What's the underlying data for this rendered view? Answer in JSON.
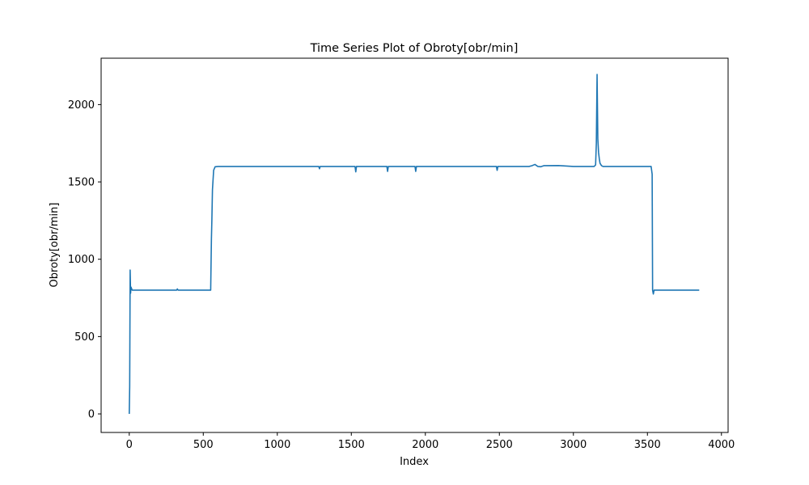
{
  "chart_data": {
    "type": "line",
    "title": "Time Series Plot of Obroty[obr/min]",
    "xlabel": "Index",
    "ylabel": "Obroty[obr/min]",
    "xlim": [
      -190,
      4045
    ],
    "ylim": [
      -120,
      2300
    ],
    "x_ticks": [
      0,
      500,
      1000,
      1500,
      2000,
      2500,
      3000,
      3500,
      4000
    ],
    "y_ticks": [
      0,
      500,
      1000,
      1500,
      2000
    ],
    "grid": false,
    "legend": "none",
    "series": [
      {
        "color": "#1f77b4",
        "x": [
          0,
          3,
          6,
          9,
          12,
          20,
          50,
          100,
          200,
          320,
          325,
          330,
          400,
          500,
          550,
          555,
          558,
          562,
          570,
          580,
          600,
          700,
          800,
          900,
          1000,
          1100,
          1200,
          1280,
          1285,
          1290,
          1400,
          1500,
          1525,
          1530,
          1535,
          1600,
          1700,
          1740,
          1745,
          1750,
          1800,
          1900,
          1930,
          1935,
          1940,
          2000,
          2100,
          2200,
          2300,
          2400,
          2480,
          2485,
          2490,
          2600,
          2700,
          2720,
          2740,
          2760,
          2780,
          2800,
          2900,
          3000,
          3100,
          3140,
          3150,
          3155,
          3160,
          3165,
          3170,
          3175,
          3180,
          3190,
          3200,
          3250,
          3300,
          3400,
          3500,
          3525,
          3532,
          3535,
          3540,
          3545,
          3550,
          3600,
          3700,
          3800,
          3850
        ],
        "y": [
          0,
          180,
          930,
          780,
          820,
          800,
          800,
          800,
          800,
          800,
          808,
          800,
          800,
          800,
          800,
          1130,
          1250,
          1450,
          1575,
          1598,
          1600,
          1600,
          1600,
          1600,
          1600,
          1600,
          1600,
          1600,
          1585,
          1600,
          1600,
          1600,
          1600,
          1565,
          1600,
          1600,
          1600,
          1600,
          1568,
          1600,
          1600,
          1600,
          1600,
          1568,
          1600,
          1600,
          1600,
          1600,
          1600,
          1600,
          1600,
          1575,
          1600,
          1600,
          1600,
          1605,
          1613,
          1600,
          1598,
          1605,
          1606,
          1600,
          1600,
          1600,
          1610,
          1750,
          2195,
          1780,
          1690,
          1650,
          1620,
          1605,
          1600,
          1600,
          1600,
          1600,
          1600,
          1600,
          1550,
          800,
          775,
          800,
          800,
          800,
          800,
          800,
          800
        ]
      }
    ]
  }
}
